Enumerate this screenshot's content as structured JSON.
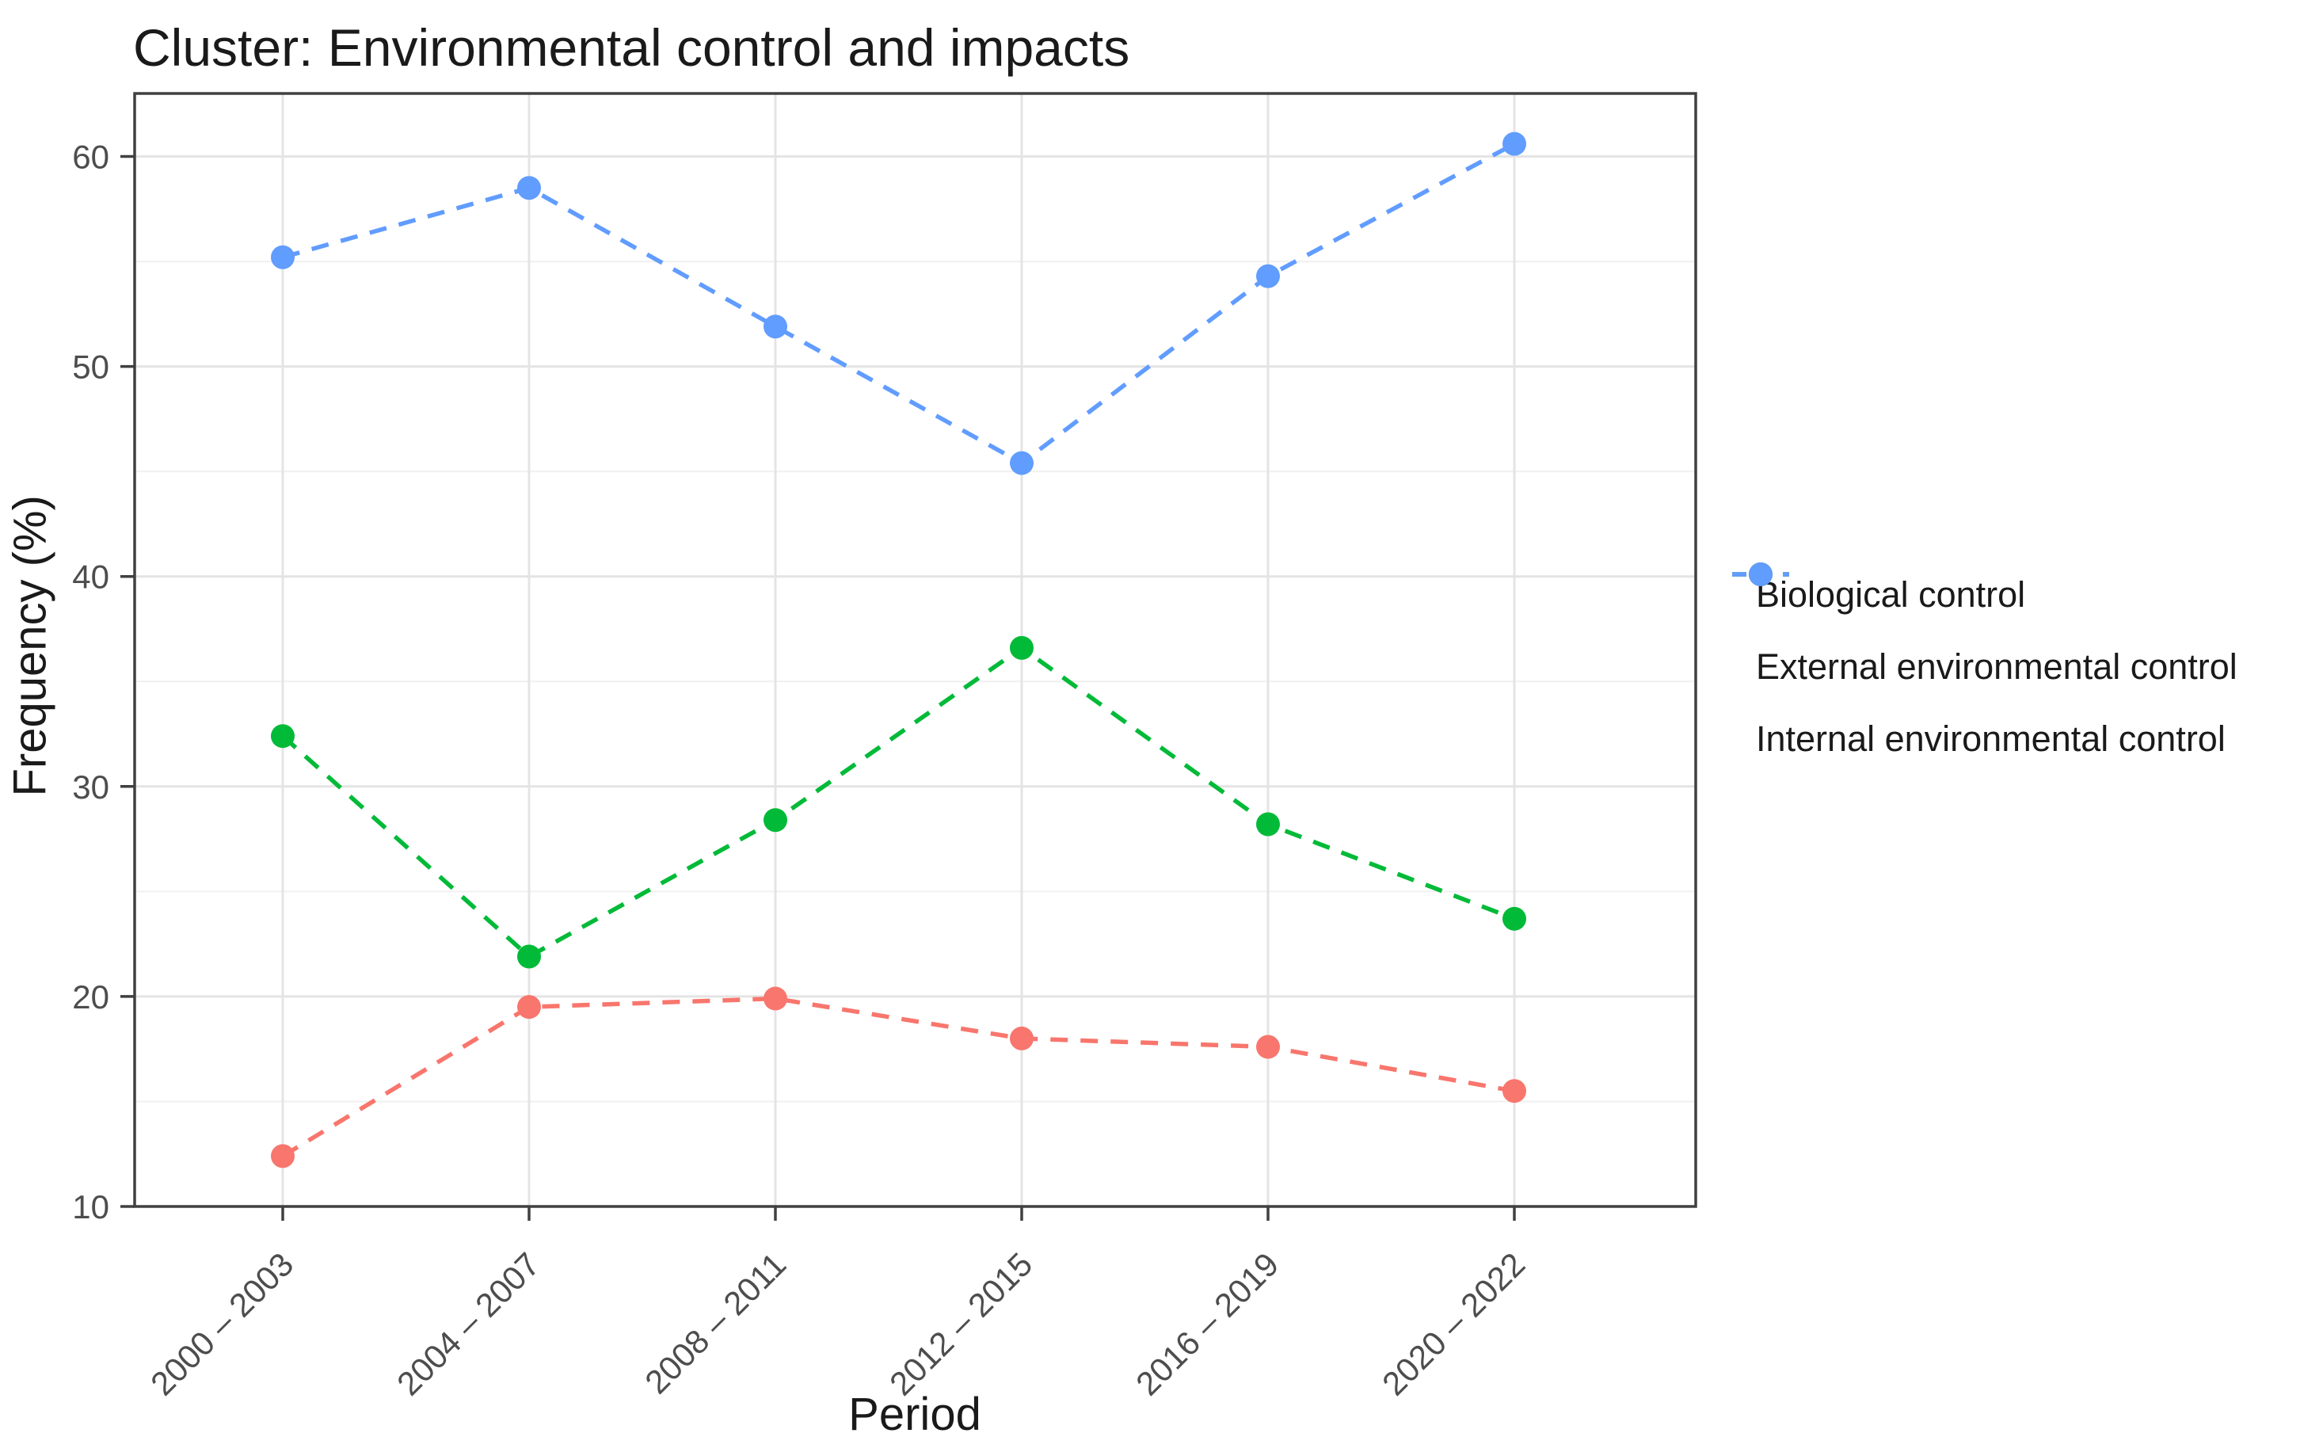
{
  "chart_data": {
    "type": "line",
    "title": "Cluster: Environmental control and impacts",
    "xlabel": "Period",
    "ylabel": "Frequency (%)",
    "categories": [
      "2000 – 2003",
      "2004 – 2007",
      "2008 – 2011",
      "2012 – 2015",
      "2016 – 2019",
      "2020 – 2022"
    ],
    "series": [
      {
        "name": "Biological control",
        "color": "#F8766D",
        "values": [
          12.4,
          19.5,
          19.9,
          18.0,
          17.6,
          15.5
        ]
      },
      {
        "name": "External environmental control",
        "color": "#00BA38",
        "values": [
          32.4,
          21.9,
          28.4,
          36.6,
          28.2,
          23.7
        ]
      },
      {
        "name": "Internal environmental control",
        "color": "#619CFF",
        "values": [
          55.2,
          58.5,
          51.9,
          45.4,
          54.3,
          60.6
        ]
      }
    ],
    "y_ticks": [
      10,
      20,
      30,
      40,
      50,
      60
    ],
    "ylim": [
      10,
      63
    ],
    "grid": "major and minor horizontal, major vertical at categories",
    "legend_position": "right",
    "line_style": "dashed",
    "marker": "circle"
  },
  "style_colors": {
    "panel_border": "#404040",
    "tick_mark": "#404040",
    "major_gridline": "#e4e4e4",
    "minor_gridline": "#f0f0f0",
    "tick_label": "#4d4d4d",
    "text": "#1a1a1a",
    "background": "#ffffff"
  }
}
